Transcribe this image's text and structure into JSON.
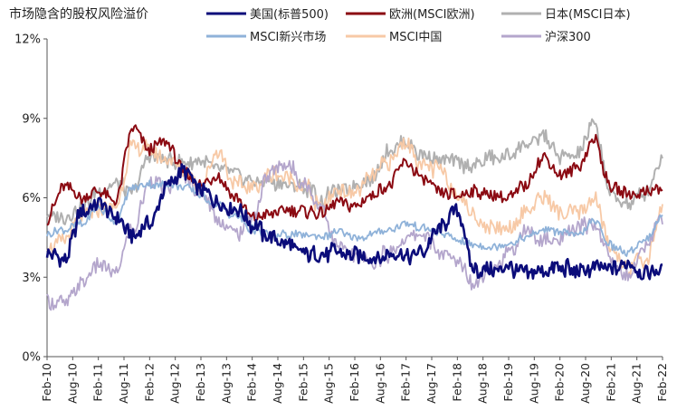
{
  "chart_data": {
    "type": "line",
    "title": "市场隐含的股权风险溢价",
    "ylim": [
      0,
      12
    ],
    "yticks": [
      "0%",
      "3%",
      "6%",
      "9%",
      "12%"
    ],
    "ytick_values": [
      0,
      3,
      6,
      9,
      12
    ],
    "xlim": [
      "2010-02",
      "2022-02"
    ],
    "x_tick_labels": [
      "Feb-10",
      "Aug-10",
      "Feb-11",
      "Aug-11",
      "Feb-12",
      "Aug-12",
      "Feb-13",
      "Aug-13",
      "Feb-14",
      "Aug-14",
      "Feb-15",
      "Aug-15",
      "Feb-16",
      "Aug-16",
      "Feb-17",
      "Aug-17",
      "Feb-18",
      "Aug-18",
      "Feb-19",
      "Aug-19",
      "Feb-20",
      "Aug-20",
      "Feb-21",
      "Aug-21",
      "Feb-22"
    ],
    "x_key_months": [
      0,
      6,
      12,
      18,
      24,
      30,
      36,
      42,
      48,
      54,
      60,
      66,
      72,
      78,
      84,
      90,
      96,
      102,
      108,
      114,
      120,
      126,
      132,
      138,
      144
    ],
    "legend_position": "top",
    "series": [
      {
        "name": "美国(标普500)",
        "color": "#0b0c7a",
        "width": 2.6,
        "values": [
          4.0,
          3.6,
          5.4,
          5.8,
          5.2,
          4.6,
          5.0,
          6.5,
          7.0,
          6.3,
          5.9,
          5.6,
          5.0,
          4.5,
          4.3,
          3.9,
          3.8,
          4.0,
          3.9,
          3.7,
          3.8,
          3.8,
          4.0,
          4.9,
          5.5,
          3.3,
          3.2,
          3.4,
          3.1,
          3.2,
          3.4,
          3.2,
          3.3,
          3.3,
          3.5,
          3.1,
          3.3
        ]
      },
      {
        "name": "欧洲(MSCI欧洲)",
        "color": "#8b0a12",
        "width": 2.0,
        "values": [
          5.2,
          6.5,
          6.0,
          6.3,
          5.8,
          8.6,
          7.8,
          8.1,
          7.0,
          6.5,
          6.8,
          6.0,
          5.2,
          5.4,
          5.5,
          5.5,
          5.4,
          5.9,
          5.7,
          6.1,
          6.5,
          7.3,
          6.7,
          6.2,
          6.1,
          6.2,
          6.1,
          6.0,
          6.5,
          7.5,
          6.9,
          7.1,
          8.2,
          6.4,
          6.1,
          6.3,
          6.3
        ]
      },
      {
        "name": "日本(MSCI日本)",
        "color": "#b0b0b0",
        "width": 2.0,
        "values": [
          5.3,
          5.3,
          5.6,
          6.2,
          6.6,
          6.2,
          7.6,
          7.4,
          7.3,
          7.4,
          7.0,
          6.9,
          6.6,
          6.6,
          6.5,
          6.4,
          6.0,
          6.2,
          6.5,
          6.7,
          7.8,
          8.1,
          7.6,
          7.4,
          7.3,
          7.2,
          7.5,
          7.6,
          8.0,
          8.3,
          7.6,
          7.6,
          8.8,
          6.1,
          5.8,
          6.2,
          7.5
        ]
      },
      {
        "name": "MSCI新兴市场",
        "color": "#8fb2d9",
        "width": 1.8,
        "values": [
          4.6,
          4.8,
          5.0,
          5.6,
          5.1,
          6.4,
          6.5,
          6.5,
          6.4,
          6.1,
          5.7,
          5.3,
          4.8,
          4.6,
          4.6,
          4.6,
          4.5,
          4.7,
          4.5,
          4.6,
          4.8,
          5.0,
          4.9,
          4.7,
          4.4,
          4.2,
          4.1,
          4.3,
          4.5,
          4.8,
          4.7,
          4.6,
          5.1,
          4.2,
          3.9,
          4.5,
          5.2
        ]
      },
      {
        "name": "MSCI中国",
        "color": "#f7c9a6",
        "width": 1.8,
        "values": [
          4.2,
          4.3,
          5.3,
          5.5,
          5.6,
          8.0,
          7.8,
          7.4,
          7.0,
          6.4,
          7.7,
          6.5,
          6.4,
          6.9,
          6.7,
          6.5,
          5.6,
          6.3,
          6.2,
          6.7,
          7.4,
          8.1,
          7.2,
          7.0,
          6.1,
          5.3,
          4.8,
          4.9,
          5.5,
          6.0,
          5.4,
          5.5,
          5.9,
          4.0,
          3.4,
          3.6,
          5.6
        ]
      },
      {
        "name": "沪深300",
        "color": "#b4a6cc",
        "width": 1.8,
        "values": [
          2.1,
          2.0,
          2.8,
          3.5,
          3.2,
          4.8,
          6.6,
          6.4,
          6.8,
          6.2,
          5.2,
          4.6,
          5.3,
          6.9,
          7.3,
          6.5,
          5.7,
          4.2,
          3.7,
          3.6,
          3.9,
          4.4,
          4.6,
          4.0,
          3.6,
          2.8,
          3.3,
          3.9,
          4.7,
          4.4,
          4.4,
          4.9,
          5.0,
          3.7,
          3.0,
          4.2,
          5.3
        ]
      }
    ]
  }
}
